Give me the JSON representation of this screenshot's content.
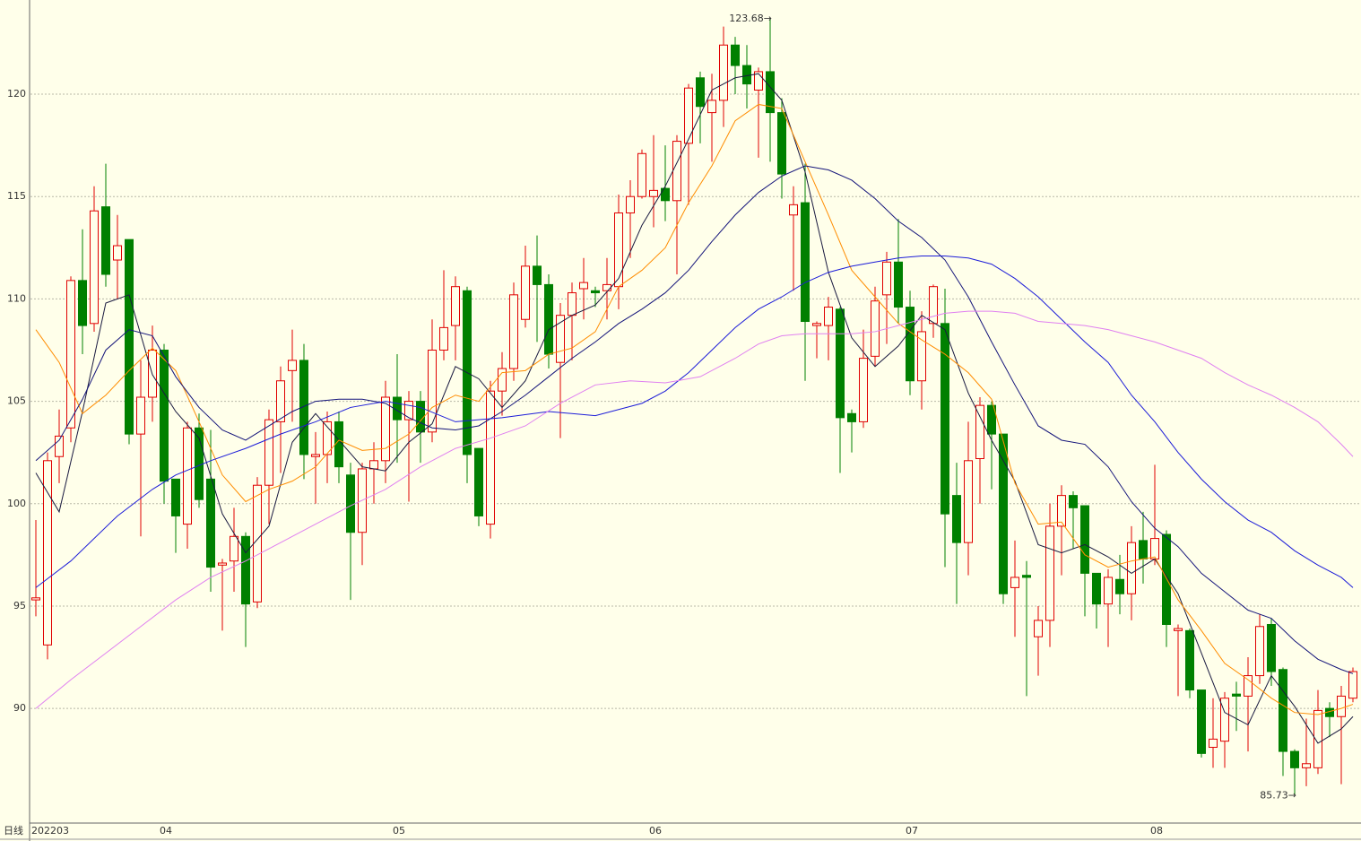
{
  "chart_data": {
    "type": "candlestick",
    "period_label": "日线",
    "categories": [
      "202203",
      null,
      null,
      null,
      null,
      null,
      null,
      null,
      null,
      null,
      null,
      "04",
      null,
      null,
      null,
      null,
      null,
      null,
      null,
      null,
      null,
      null,
      null,
      null,
      null,
      null,
      null,
      null,
      null,
      null,
      null,
      "05",
      null,
      null,
      null,
      null,
      null,
      null,
      null,
      null,
      null,
      null,
      null,
      null,
      null,
      null,
      null,
      null,
      null,
      null,
      null,
      null,
      null,
      "06",
      null,
      null,
      null,
      null,
      null,
      null,
      null,
      null,
      null,
      null,
      null,
      null,
      null,
      null,
      null,
      null,
      null,
      null,
      null,
      null,
      null,
      "07",
      null,
      null,
      null,
      null,
      null,
      null,
      null,
      null,
      null,
      null,
      null,
      null,
      null,
      null,
      null,
      null,
      null,
      null,
      null,
      null,
      "08",
      null,
      null,
      null,
      null,
      null,
      null,
      null,
      null,
      null,
      null,
      null,
      null,
      null,
      null,
      null,
      null,
      null
    ],
    "open": [
      95.3,
      93.1,
      102.3,
      103.7,
      110.9,
      108.8,
      114.5,
      111.9,
      112.9,
      103.4,
      105.2,
      107.5,
      101.2,
      99.0,
      103.7,
      101.2,
      97.0,
      97.2,
      98.4,
      95.2,
      100.9,
      104.0,
      106.5,
      107.0,
      102.3,
      102.4,
      104.0,
      101.4,
      98.6,
      101.7,
      102.1,
      105.2,
      104.1,
      105.0,
      103.5,
      107.5,
      108.7,
      110.4,
      102.7,
      99.0,
      105.5,
      106.6,
      109.0,
      111.6,
      110.7,
      106.9,
      109.2,
      110.5,
      110.4,
      110.4,
      110.6,
      114.2,
      115.0,
      115.0,
      115.4,
      114.8,
      117.6,
      120.8,
      119.1,
      119.7,
      122.4,
      121.4,
      120.2,
      121.1,
      119.1,
      114.1,
      114.7,
      108.7,
      108.7,
      109.5,
      104.4,
      104.0,
      107.2,
      110.2,
      111.8,
      109.6,
      106.0,
      108.8,
      108.8,
      100.4,
      98.1,
      102.2,
      104.8,
      103.4,
      95.9,
      96.5,
      93.5,
      94.3,
      98.9,
      100.4,
      99.9,
      96.6,
      95.1,
      96.3,
      95.6,
      98.2,
      97.3,
      98.5,
      93.8,
      93.8,
      90.9,
      88.1,
      88.4,
      90.7,
      90.6,
      91.6,
      94.1,
      91.9,
      87.9,
      87.1,
      87.1,
      90.0,
      89.6,
      90.5
    ],
    "high": [
      99.2,
      102.5,
      104.6,
      111.1,
      113.4,
      115.5,
      116.6,
      114.1,
      112.9,
      107.0,
      108.7,
      107.8,
      101.2,
      104.0,
      104.4,
      103.6,
      97.3,
      99.8,
      98.6,
      101.3,
      104.6,
      106.7,
      108.5,
      107.8,
      103.5,
      104.5,
      104.5,
      102.0,
      102.0,
      103.0,
      106.0,
      107.3,
      105.5,
      105.5,
      109.0,
      111.4,
      111.1,
      110.6,
      102.7,
      106.0,
      107.4,
      110.8,
      112.6,
      113.1,
      111.2,
      109.8,
      110.8,
      112.0,
      110.6,
      112.0,
      115.1,
      115.8,
      117.3,
      118.0,
      117.5,
      118.0,
      120.5,
      121.1,
      121.0,
      123.3,
      122.8,
      122.4,
      121.3,
      123.68,
      119.8,
      115.5,
      116.6,
      108.9,
      110.1,
      109.6,
      104.6,
      108.5,
      110.6,
      112.3,
      113.9,
      110.4,
      109.4,
      110.7,
      110.5,
      102.0,
      104.0,
      105.2,
      105.0,
      103.4,
      98.2,
      97.2,
      95.0,
      100.0,
      100.9,
      100.6,
      99.9,
      96.6,
      96.8,
      97.5,
      98.9,
      99.6,
      101.9,
      98.7,
      94.1,
      93.9,
      90.9,
      90.5,
      90.8,
      91.3,
      92.5,
      94.6,
      94.4,
      92.0,
      88.0,
      89.5,
      90.9,
      90.3,
      91.1,
      92.0
    ],
    "low": [
      94.5,
      92.4,
      101.0,
      103.0,
      107.3,
      108.4,
      110.6,
      110.0,
      102.9,
      98.4,
      104.0,
      100.0,
      97.6,
      97.8,
      99.8,
      95.7,
      93.8,
      95.7,
      93.0,
      94.9,
      99.0,
      101.5,
      104.0,
      101.2,
      100.0,
      101.0,
      101.0,
      95.3,
      97.0,
      100.0,
      101.0,
      102.0,
      100.1,
      102.0,
      103.0,
      107.0,
      107.0,
      101.0,
      98.9,
      98.3,
      104.3,
      106.0,
      108.6,
      107.9,
      106.6,
      103.2,
      107.0,
      109.0,
      109.6,
      109.0,
      109.5,
      112.0,
      114.9,
      113.5,
      113.8,
      111.2,
      114.6,
      117.6,
      116.7,
      118.4,
      120.0,
      119.3,
      116.9,
      116.7,
      114.9,
      110.4,
      106.0,
      107.1,
      107.0,
      101.5,
      102.5,
      103.7,
      106.7,
      107.8,
      108.8,
      105.3,
      104.6,
      108.1,
      96.9,
      95.1,
      96.5,
      100.0,
      100.7,
      95.1,
      93.5,
      90.6,
      91.6,
      93.0,
      96.5,
      97.8,
      94.5,
      93.9,
      93.0,
      94.6,
      94.3,
      96.1,
      97.0,
      93.0,
      90.6,
      90.5,
      87.6,
      87.1,
      87.1,
      88.9,
      87.9,
      91.2,
      91.1,
      86.7,
      85.73,
      86.2,
      86.8,
      88.6,
      86.3,
      90.3
    ],
    "close": [
      95.4,
      102.1,
      103.3,
      110.9,
      108.7,
      114.3,
      111.2,
      112.6,
      103.4,
      105.2,
      107.5,
      101.1,
      99.4,
      103.7,
      100.2,
      96.9,
      97.1,
      98.4,
      95.1,
      100.9,
      104.1,
      106.0,
      107.0,
      102.4,
      102.4,
      104.0,
      101.8,
      98.6,
      101.7,
      102.1,
      105.2,
      104.1,
      105.0,
      103.5,
      107.5,
      108.6,
      110.6,
      102.4,
      99.4,
      105.5,
      106.6,
      110.2,
      111.6,
      110.7,
      107.3,
      109.2,
      110.3,
      110.8,
      110.3,
      110.7,
      114.2,
      115.0,
      117.1,
      115.3,
      114.8,
      117.7,
      120.3,
      119.4,
      119.7,
      122.4,
      121.4,
      120.5,
      121.1,
      119.1,
      116.1,
      114.6,
      108.9,
      108.8,
      109.6,
      104.2,
      104.0,
      107.1,
      109.9,
      111.8,
      109.6,
      106.0,
      108.4,
      110.6,
      99.5,
      98.1,
      102.1,
      104.8,
      103.4,
      95.6,
      96.4,
      96.4,
      94.3,
      98.9,
      100.4,
      99.8,
      96.6,
      95.1,
      96.4,
      95.6,
      98.1,
      97.3,
      98.3,
      94.1,
      93.9,
      90.9,
      87.8,
      88.5,
      90.5,
      90.6,
      91.6,
      94.0,
      91.8,
      87.9,
      87.1,
      87.3,
      89.9,
      89.6,
      90.6,
      91.8
    ],
    "up_color": "#e00000",
    "down_color": "#008000",
    "lines": [
      {
        "color": "#1a1a40",
        "x": [
          0,
          2,
          4,
          6,
          8,
          10,
          12,
          14,
          16,
          18,
          20,
          22,
          24,
          26,
          28,
          30,
          32,
          34,
          36,
          38,
          40,
          42,
          44,
          46,
          48,
          50,
          52,
          54,
          56,
          58,
          60,
          62,
          64,
          66,
          68,
          70,
          72,
          74,
          76,
          78,
          80,
          82,
          84,
          86,
          88,
          90,
          92,
          94,
          96,
          98,
          100,
          102,
          104,
          106,
          108,
          110,
          112,
          113
        ],
        "values": [
          101.5,
          99.6,
          104.5,
          109.8,
          110.2,
          106.3,
          104.5,
          103.2,
          99.5,
          97.6,
          98.9,
          103.0,
          104.4,
          103.1,
          101.8,
          101.6,
          103.0,
          103.9,
          106.7,
          106.1,
          104.7,
          106.0,
          108.5,
          109.2,
          109.7,
          111.0,
          113.6,
          115.5,
          117.8,
          120.2,
          120.8,
          121.0,
          119.7,
          116.2,
          111.3,
          108.1,
          106.7,
          107.7,
          109.2,
          108.5,
          105.4,
          103.1,
          101.1,
          98.0,
          97.6,
          98.0,
          97.4,
          96.6,
          97.3,
          95.6,
          92.7,
          89.8,
          89.2,
          91.6,
          90.1,
          88.3,
          89.0,
          89.6
        ]
      },
      {
        "color": "#ff8c00",
        "x": [
          0,
          2,
          4,
          6,
          8,
          10,
          12,
          14,
          16,
          18,
          20,
          22,
          24,
          26,
          28,
          30,
          32,
          34,
          36,
          38,
          40,
          42,
          44,
          46,
          48,
          50,
          52,
          54,
          56,
          58,
          60,
          62,
          64,
          66,
          68,
          70,
          72,
          74,
          76,
          78,
          80,
          82,
          84,
          86,
          88,
          90,
          92,
          94,
          96,
          98,
          100,
          102,
          104,
          106,
          108,
          110,
          112,
          113
        ],
        "values": [
          108.5,
          106.9,
          104.4,
          105.3,
          106.5,
          107.6,
          106.5,
          104.0,
          101.4,
          100.1,
          100.7,
          101.1,
          101.8,
          103.1,
          102.6,
          102.7,
          103.4,
          104.7,
          105.3,
          105.0,
          106.4,
          106.5,
          107.3,
          107.6,
          108.4,
          110.6,
          111.4,
          112.5,
          114.7,
          116.5,
          118.7,
          119.5,
          119.3,
          116.7,
          114.1,
          111.4,
          110.1,
          108.8,
          108.0,
          107.3,
          106.4,
          105.1,
          101.0,
          99.0,
          99.1,
          97.5,
          96.9,
          97.2,
          97.4,
          95.3,
          93.8,
          92.2,
          91.4,
          90.5,
          89.8,
          89.7,
          90.0,
          90.2
        ]
      },
      {
        "color": "#14147a",
        "x": [
          0,
          2,
          4,
          6,
          8,
          10,
          12,
          14,
          16,
          18,
          20,
          22,
          24,
          26,
          28,
          30,
          32,
          34,
          36,
          38,
          40,
          42,
          44,
          46,
          48,
          50,
          52,
          54,
          56,
          58,
          60,
          62,
          64,
          66,
          68,
          70,
          72,
          74,
          76,
          78,
          80,
          82,
          84,
          86,
          88,
          90,
          92,
          94,
          96,
          98,
          100,
          102,
          104,
          106,
          108,
          110,
          112,
          113
        ],
        "values": [
          102.1,
          103.1,
          105.1,
          107.5,
          108.5,
          108.2,
          106.2,
          104.7,
          103.6,
          103.1,
          103.8,
          104.5,
          105.0,
          105.1,
          105.1,
          104.9,
          104.2,
          103.7,
          103.6,
          103.8,
          104.5,
          105.3,
          106.2,
          107.1,
          107.9,
          108.8,
          109.5,
          110.3,
          111.4,
          112.8,
          114.1,
          115.2,
          116.0,
          116.5,
          116.3,
          115.8,
          114.9,
          113.8,
          113.0,
          111.9,
          110.1,
          107.9,
          105.8,
          103.8,
          103.1,
          102.9,
          101.8,
          100.1,
          98.8,
          97.9,
          96.6,
          95.7,
          94.8,
          94.4,
          93.3,
          92.4,
          91.9,
          91.7
        ]
      },
      {
        "color": "#1c1cd8",
        "x": [
          0,
          3,
          7,
          10,
          12,
          15,
          18,
          21,
          24,
          27,
          30,
          33,
          36,
          40,
          44,
          48,
          52,
          54,
          56,
          58,
          60,
          62,
          64,
          66,
          68,
          70,
          72,
          74,
          76,
          78,
          80,
          82,
          84,
          86,
          88,
          90,
          92,
          94,
          96,
          98,
          100,
          102,
          104,
          106,
          108,
          110,
          112,
          113
        ],
        "values": [
          95.9,
          97.2,
          99.4,
          100.7,
          101.4,
          102.1,
          102.7,
          103.4,
          104.0,
          104.7,
          105.0,
          104.7,
          104.0,
          104.2,
          104.5,
          104.3,
          104.9,
          105.5,
          106.4,
          107.5,
          108.6,
          109.5,
          110.1,
          110.8,
          111.3,
          111.6,
          111.8,
          112.0,
          112.1,
          112.1,
          112.0,
          111.7,
          111.0,
          110.1,
          109.0,
          107.9,
          106.9,
          105.3,
          104.0,
          102.5,
          101.2,
          100.1,
          99.2,
          98.6,
          97.7,
          97.0,
          96.4,
          95.9
        ]
      },
      {
        "color": "#e080f0",
        "x": [
          0,
          3,
          6,
          9,
          12,
          15,
          18,
          21,
          24,
          27,
          30,
          33,
          36,
          39,
          42,
          45,
          48,
          51,
          54,
          57,
          60,
          62,
          64,
          66,
          68,
          70,
          72,
          74,
          76,
          78,
          80,
          82,
          84,
          86,
          88,
          90,
          92,
          94,
          96,
          98,
          100,
          102,
          104,
          106,
          108,
          110,
          112,
          113
        ],
        "values": [
          90.0,
          91.4,
          92.7,
          94.0,
          95.3,
          96.4,
          97.2,
          98.1,
          99.0,
          99.9,
          100.7,
          101.8,
          102.7,
          103.2,
          103.8,
          104.9,
          105.8,
          106.0,
          105.9,
          106.2,
          107.1,
          107.8,
          108.2,
          108.3,
          108.3,
          108.3,
          108.4,
          108.7,
          109.0,
          109.3,
          109.4,
          109.4,
          109.3,
          108.9,
          108.8,
          108.7,
          108.5,
          108.2,
          107.9,
          107.5,
          107.1,
          106.4,
          105.8,
          105.3,
          104.7,
          104.0,
          102.9,
          102.3
        ]
      }
    ],
    "annotations": [
      {
        "x": 63,
        "value": 123.68,
        "label": "123.68→"
      },
      {
        "x": 108,
        "value": 85.73,
        "label": "85.73→"
      }
    ],
    "ylim": [
      84.4,
      124.6
    ],
    "yticks": [
      90,
      95,
      100,
      105,
      110,
      115,
      120
    ],
    "grid": true
  }
}
